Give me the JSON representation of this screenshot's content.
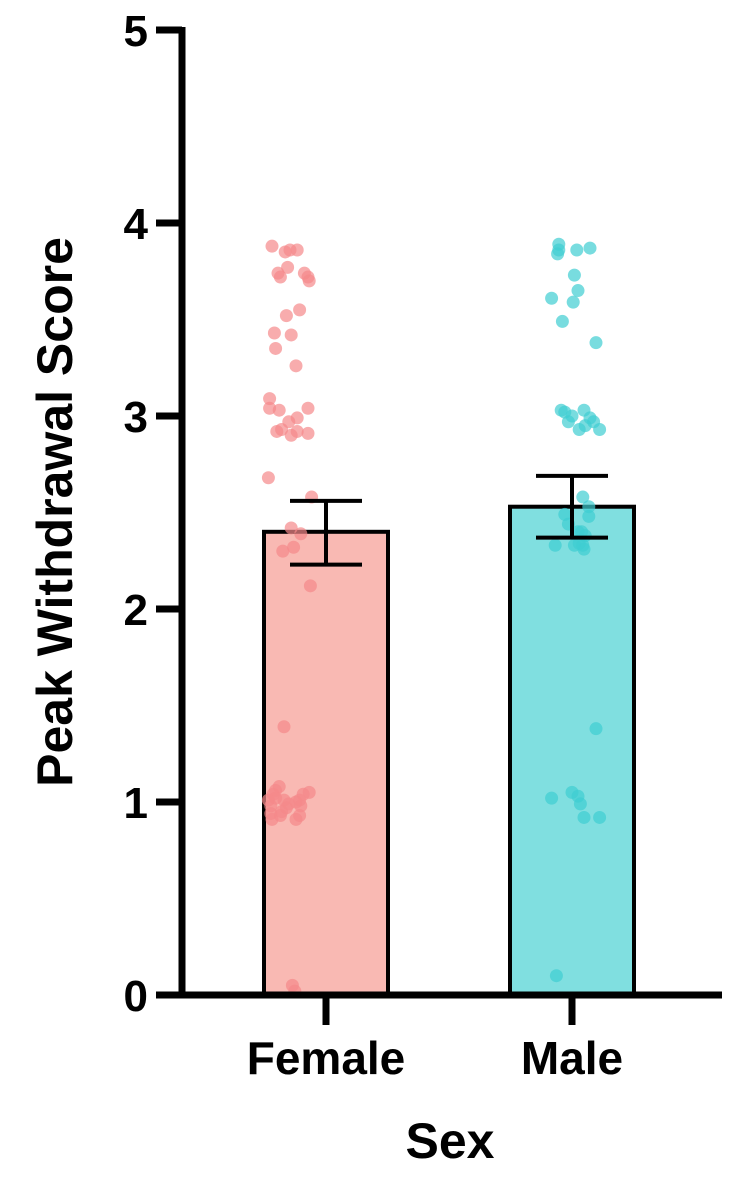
{
  "chart_data": {
    "type": "bar",
    "xlabel": "Sex",
    "ylabel": "Peak Withdrawal Score",
    "ylim": [
      0,
      5
    ],
    "yticks": [
      "0",
      "1",
      "2",
      "3",
      "4",
      "5"
    ],
    "ytick_values": [
      0,
      1,
      2,
      3,
      4,
      5
    ],
    "grid": false,
    "legend": "none",
    "categories": [
      "Female",
      "Male"
    ],
    "values": [
      2.4,
      2.53
    ],
    "error_low": [
      2.23,
      2.37
    ],
    "error_high": [
      2.56,
      2.69
    ],
    "bar_fill_colors": [
      "#f9b9b3",
      "#80dfe0"
    ],
    "point_colors": [
      "#f5898a",
      "#3fcdd1"
    ],
    "points": [
      [
        [
          -0.45,
          3.88
        ],
        [
          -0.34,
          3.85
        ],
        [
          -0.3,
          3.86
        ],
        [
          -0.24,
          3.86
        ],
        [
          -0.32,
          3.77
        ],
        [
          -0.4,
          3.74
        ],
        [
          -0.38,
          3.72
        ],
        [
          -0.18,
          3.74
        ],
        [
          -0.15,
          3.72
        ],
        [
          -0.14,
          3.7
        ],
        [
          -0.33,
          3.52
        ],
        [
          -0.22,
          3.55
        ],
        [
          -0.29,
          3.42
        ],
        [
          -0.43,
          3.43
        ],
        [
          -0.42,
          3.35
        ],
        [
          -0.25,
          3.26
        ],
        [
          -0.47,
          3.09
        ],
        [
          -0.47,
          3.04
        ],
        [
          -0.39,
          3.03
        ],
        [
          -0.31,
          2.97
        ],
        [
          -0.24,
          2.99
        ],
        [
          -0.15,
          3.04
        ],
        [
          -0.41,
          2.92
        ],
        [
          -0.37,
          2.93
        ],
        [
          -0.29,
          2.9
        ],
        [
          -0.24,
          2.92
        ],
        [
          -0.15,
          2.91
        ],
        [
          -0.48,
          2.68
        ],
        [
          -0.12,
          2.58
        ],
        [
          -0.29,
          2.42
        ],
        [
          -0.21,
          2.39
        ],
        [
          -0.36,
          2.3
        ],
        [
          -0.27,
          2.32
        ],
        [
          -0.13,
          2.12
        ],
        [
          -0.35,
          1.39
        ],
        [
          -0.44,
          1.04
        ],
        [
          -0.42,
          1.06
        ],
        [
          -0.39,
          1.08
        ],
        [
          -0.48,
          1.01
        ],
        [
          -0.46,
          0.98
        ],
        [
          -0.35,
          1.01
        ],
        [
          -0.33,
          0.97
        ],
        [
          -0.31,
          0.99
        ],
        [
          -0.25,
          1.0
        ],
        [
          -0.19,
          1.04
        ],
        [
          -0.14,
          1.05
        ],
        [
          -0.21,
          0.98
        ],
        [
          -0.46,
          0.94
        ],
        [
          -0.45,
          0.91
        ],
        [
          -0.37,
          0.95
        ],
        [
          -0.25,
          0.91
        ],
        [
          -0.22,
          0.93
        ],
        [
          -0.38,
          0.93
        ],
        [
          -0.28,
          0.05
        ],
        [
          -0.26,
          0.02
        ],
        [
          -0.42,
          1.02
        ],
        [
          -0.22,
          1.01
        ]
      ],
      [
        [
          -0.11,
          3.89
        ],
        [
          -0.11,
          3.86
        ],
        [
          -0.12,
          3.84
        ],
        [
          0.04,
          3.86
        ],
        [
          0.15,
          3.87
        ],
        [
          0.02,
          3.73
        ],
        [
          0.05,
          3.65
        ],
        [
          0.01,
          3.59
        ],
        [
          -0.17,
          3.61
        ],
        [
          -0.08,
          3.49
        ],
        [
          0.2,
          3.38
        ],
        [
          -0.09,
          3.03
        ],
        [
          -0.06,
          3.02
        ],
        [
          0.0,
          3.0
        ],
        [
          -0.03,
          2.97
        ],
        [
          0.1,
          3.03
        ],
        [
          0.11,
          2.95
        ],
        [
          0.15,
          2.99
        ],
        [
          0.18,
          2.97
        ],
        [
          0.23,
          2.93
        ],
        [
          0.06,
          2.93
        ],
        [
          0.09,
          2.58
        ],
        [
          0.14,
          2.53
        ],
        [
          0.14,
          2.48
        ],
        [
          -0.06,
          2.49
        ],
        [
          -0.03,
          2.44
        ],
        [
          0.05,
          2.4
        ],
        [
          0.08,
          2.4
        ],
        [
          0.11,
          2.38
        ],
        [
          -0.14,
          2.33
        ],
        [
          0.02,
          2.33
        ],
        [
          0.06,
          2.34
        ],
        [
          0.09,
          2.33
        ],
        [
          0.1,
          2.31
        ],
        [
          0.2,
          1.38
        ],
        [
          -0.17,
          1.02
        ],
        [
          0.0,
          1.05
        ],
        [
          0.05,
          1.03
        ],
        [
          0.07,
          0.99
        ],
        [
          0.1,
          0.92
        ],
        [
          0.23,
          0.92
        ],
        [
          -0.13,
          0.1
        ]
      ]
    ]
  }
}
